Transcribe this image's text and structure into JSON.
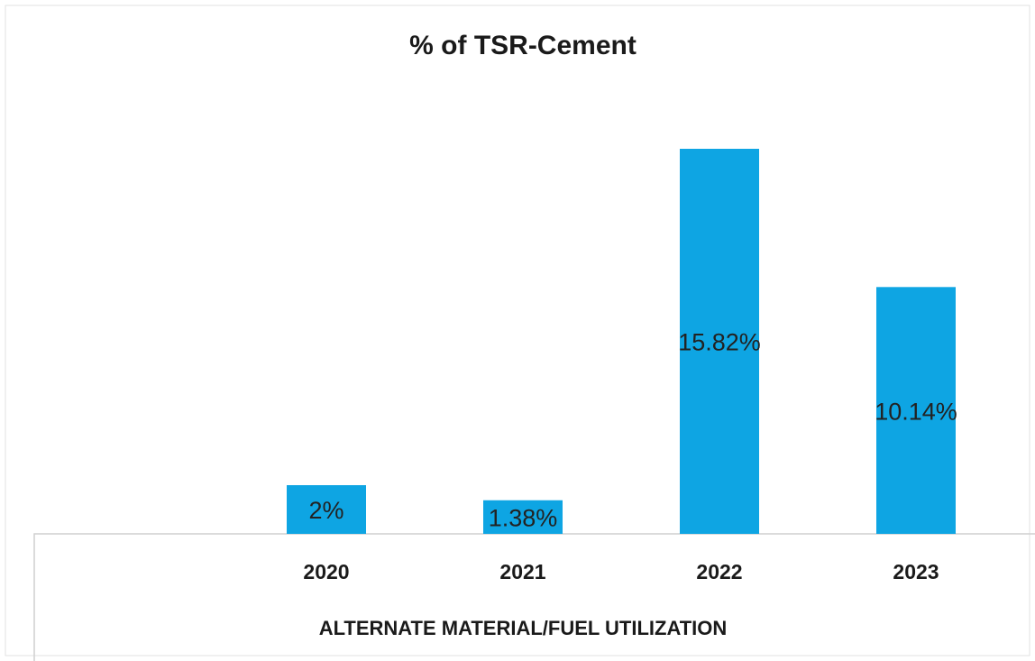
{
  "chart_data": {
    "type": "bar",
    "title": "% of TSR-Cement",
    "categories": [
      "2020",
      "2021",
      "2022",
      "2023"
    ],
    "values": [
      2,
      1.38,
      15.82,
      10.14
    ],
    "value_labels": [
      "2%",
      "1.38%",
      "15.82%",
      "10.14%"
    ],
    "color": "#0ea5e3",
    "x_label": "ALTERNATE MATERIAL/FUEL UTILIZATION"
  }
}
